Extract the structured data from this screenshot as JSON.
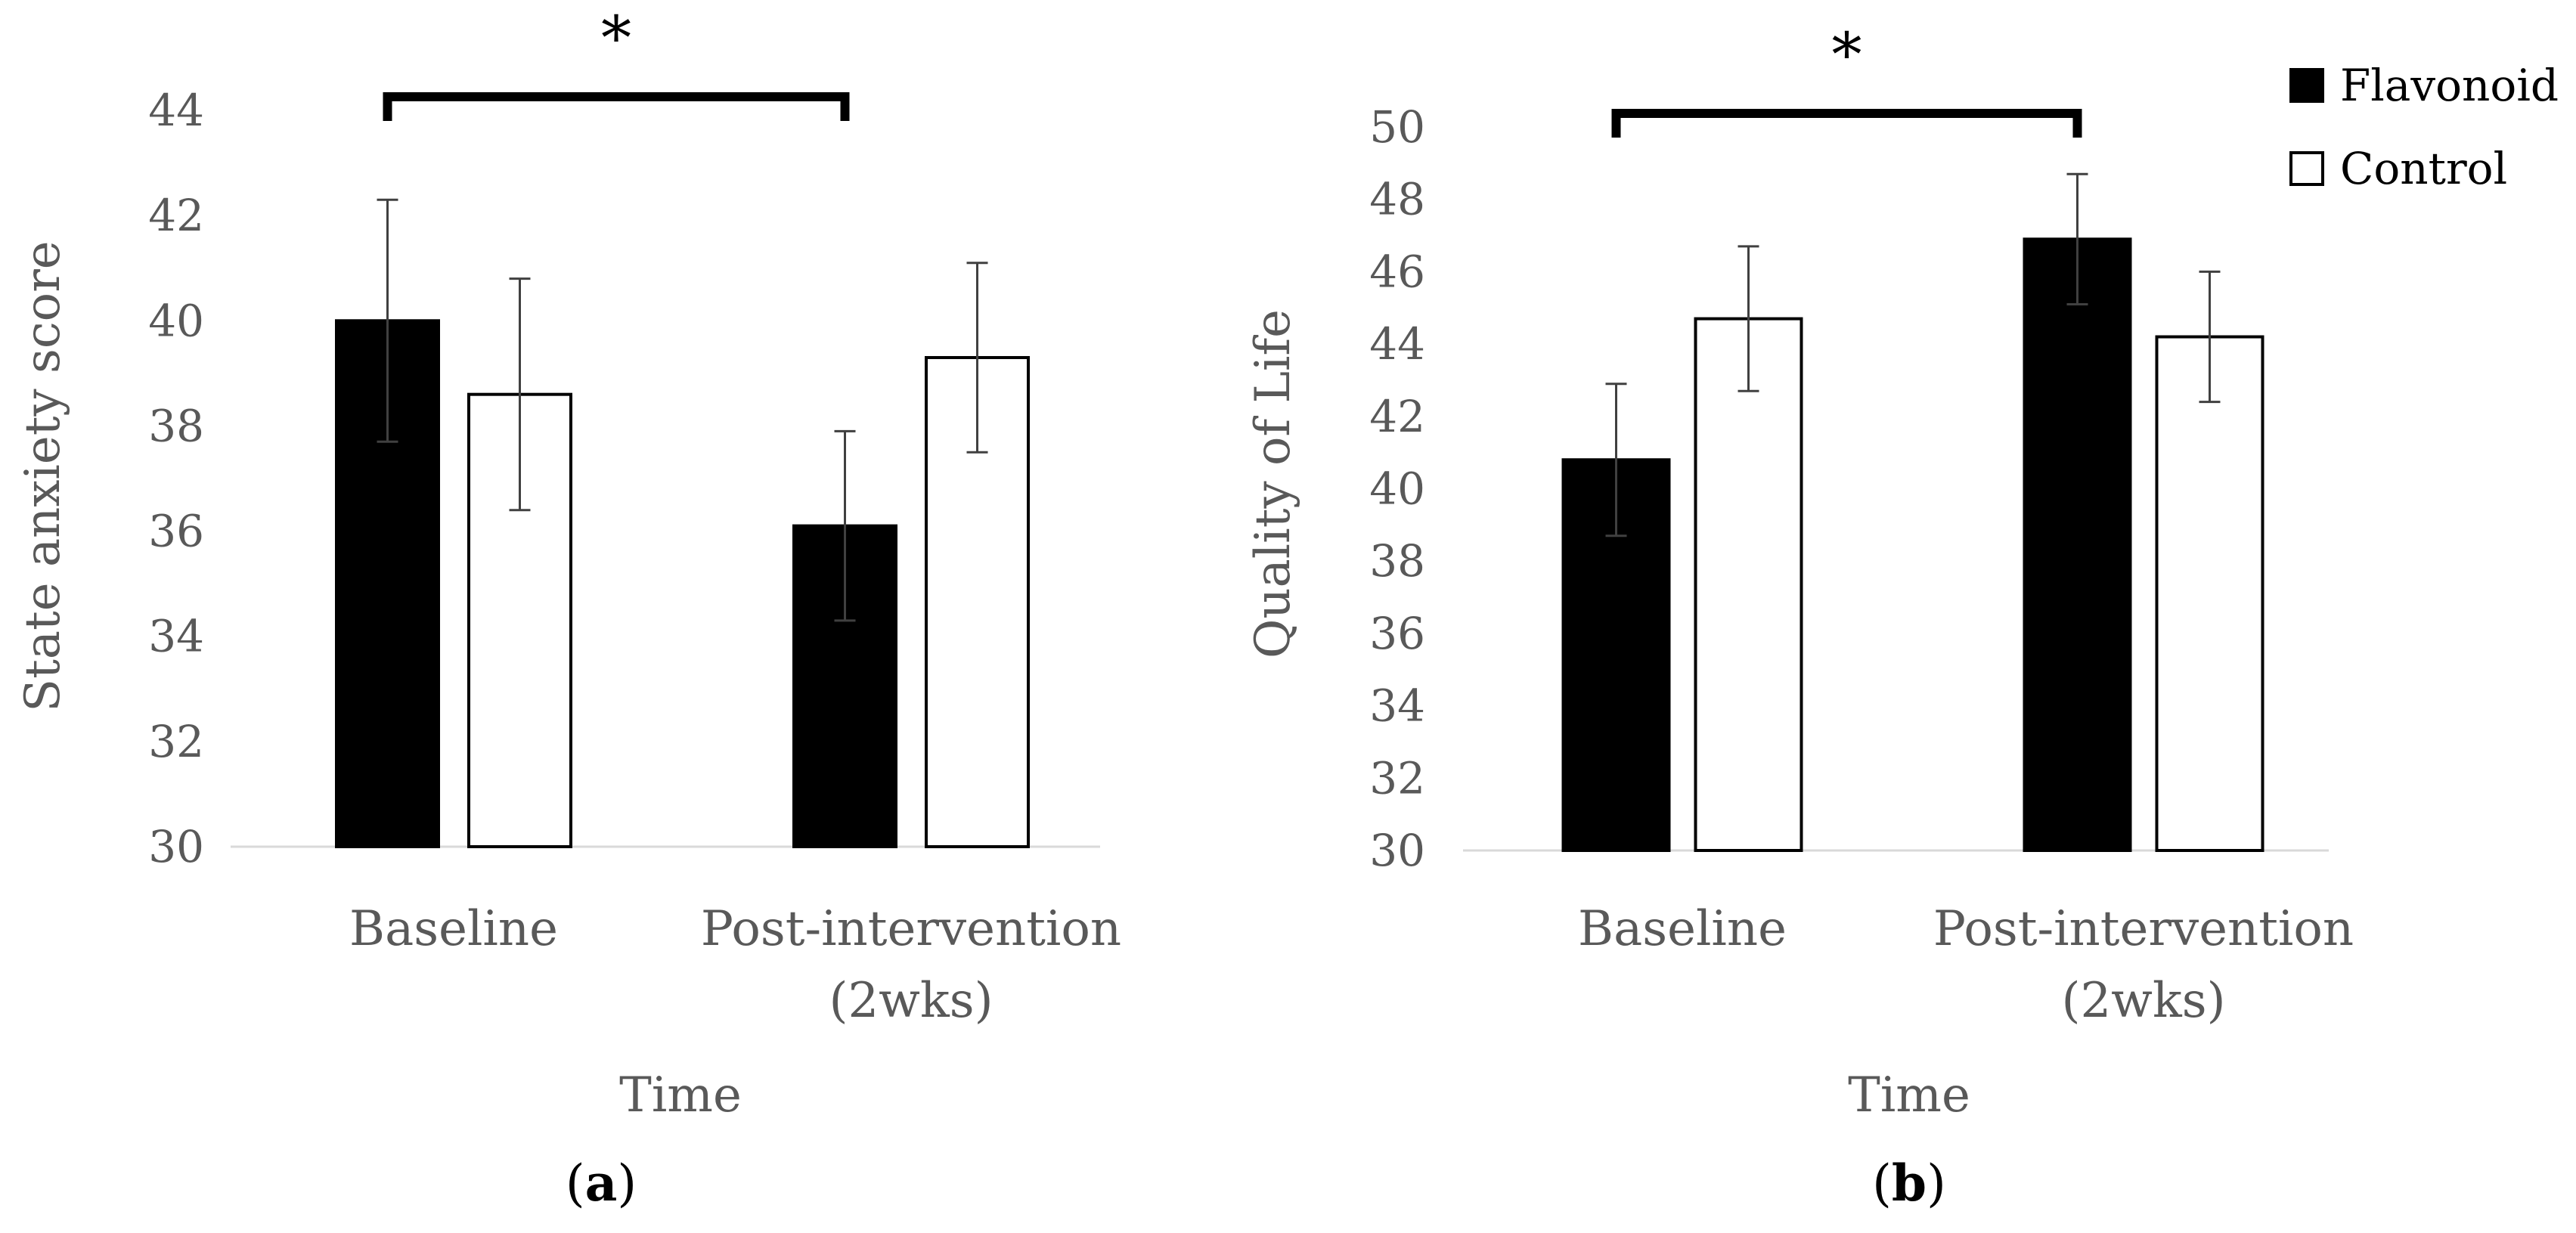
{
  "chart_data": [
    {
      "type": "bar",
      "panel_label": "(a)",
      "panel_letter": "a",
      "xlabel": "Time",
      "ylabel": "State anxiety score",
      "ylim": [
        30,
        44
      ],
      "yticks": [
        30,
        32,
        34,
        36,
        38,
        40,
        42,
        44
      ],
      "categories": [
        [
          "Baseline"
        ],
        [
          "Post-intervention",
          "(2wks)"
        ]
      ],
      "series": [
        {
          "name": "Flavonoid",
          "values": [
            40.0,
            36.1
          ],
          "errors": [
            2.3,
            1.8
          ]
        },
        {
          "name": "Control",
          "values": [
            38.6,
            39.3
          ],
          "errors": [
            2.2,
            1.8
          ]
        }
      ],
      "significance": {
        "label": "*",
        "between": [
          0,
          1
        ],
        "series": "Flavonoid"
      },
      "legend": false
    },
    {
      "type": "bar",
      "panel_label": "(b)",
      "panel_letter": "b",
      "xlabel": "Time",
      "ylabel": "Quality of Life",
      "ylim": [
        30,
        50
      ],
      "yticks": [
        30,
        32,
        34,
        36,
        38,
        40,
        42,
        44,
        46,
        48,
        50
      ],
      "categories": [
        [
          "Baseline"
        ],
        [
          "Post-intervention",
          "(2wks)"
        ]
      ],
      "series": [
        {
          "name": "Flavonoid",
          "values": [
            40.8,
            46.9
          ],
          "errors": [
            2.1,
            1.8
          ]
        },
        {
          "name": "Control",
          "values": [
            44.7,
            44.2
          ],
          "errors": [
            2.0,
            1.8
          ]
        }
      ],
      "significance": {
        "label": "*",
        "between": [
          0,
          1
        ],
        "series": "Flavonoid"
      },
      "legend": true,
      "legend_position": "top-right"
    }
  ],
  "colors": {
    "flavonoid_fill": "#000000",
    "control_fill": "#ffffff",
    "bar_outline": "#000000",
    "axis_line": "#d9d9d9",
    "text_gray": "#595959",
    "error_bar": "#404040"
  }
}
